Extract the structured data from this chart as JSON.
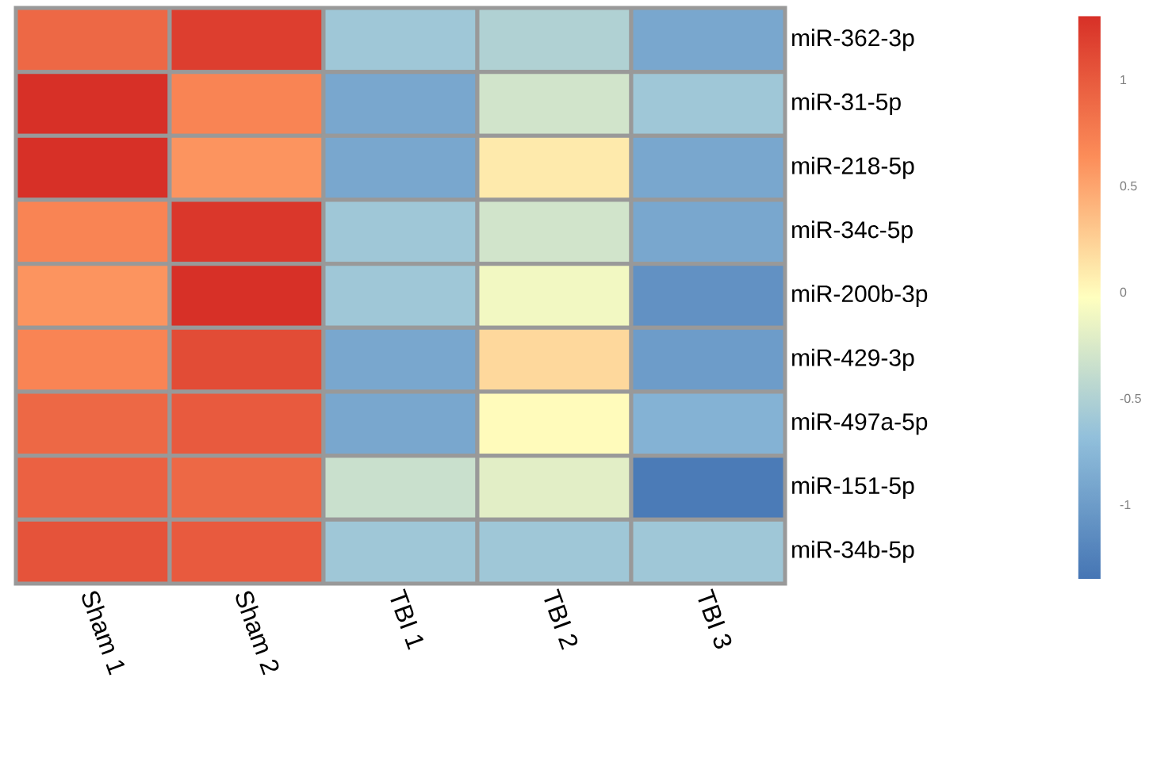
{
  "chart_data": {
    "type": "heatmap",
    "categories": [
      "Sham 1",
      "Sham 2",
      "TBI 1",
      "TBI 2",
      "TBI 3"
    ],
    "y_categories": [
      "miR-362-3p",
      "miR-31-5p",
      "miR-218-5p",
      "miR-34c-5p",
      "miR-200b-3p",
      "miR-429-3p",
      "miR-497a-5p",
      "miR-151-5p",
      "miR-34b-5p"
    ],
    "cells": [
      [
        0.9,
        1.2,
        -0.6,
        -0.5,
        -0.9
      ],
      [
        1.3,
        0.7,
        -0.9,
        -0.3,
        -0.6
      ],
      [
        1.3,
        0.6,
        -0.9,
        0.1,
        -0.9
      ],
      [
        0.7,
        1.25,
        -0.6,
        -0.3,
        -0.9
      ],
      [
        0.6,
        1.3,
        -0.6,
        -0.1,
        -1.1
      ],
      [
        0.7,
        1.1,
        -0.9,
        0.2,
        -1.0
      ],
      [
        0.9,
        1.0,
        -0.9,
        0.0,
        -0.8
      ],
      [
        0.95,
        0.9,
        -0.35,
        -0.2,
        -1.3
      ],
      [
        1.05,
        1.0,
        -0.6,
        -0.6,
        -0.6
      ]
    ],
    "clim": [
      -1.35,
      1.3
    ],
    "cticks": [
      -1,
      -0.5,
      0,
      0.5,
      1
    ]
  }
}
